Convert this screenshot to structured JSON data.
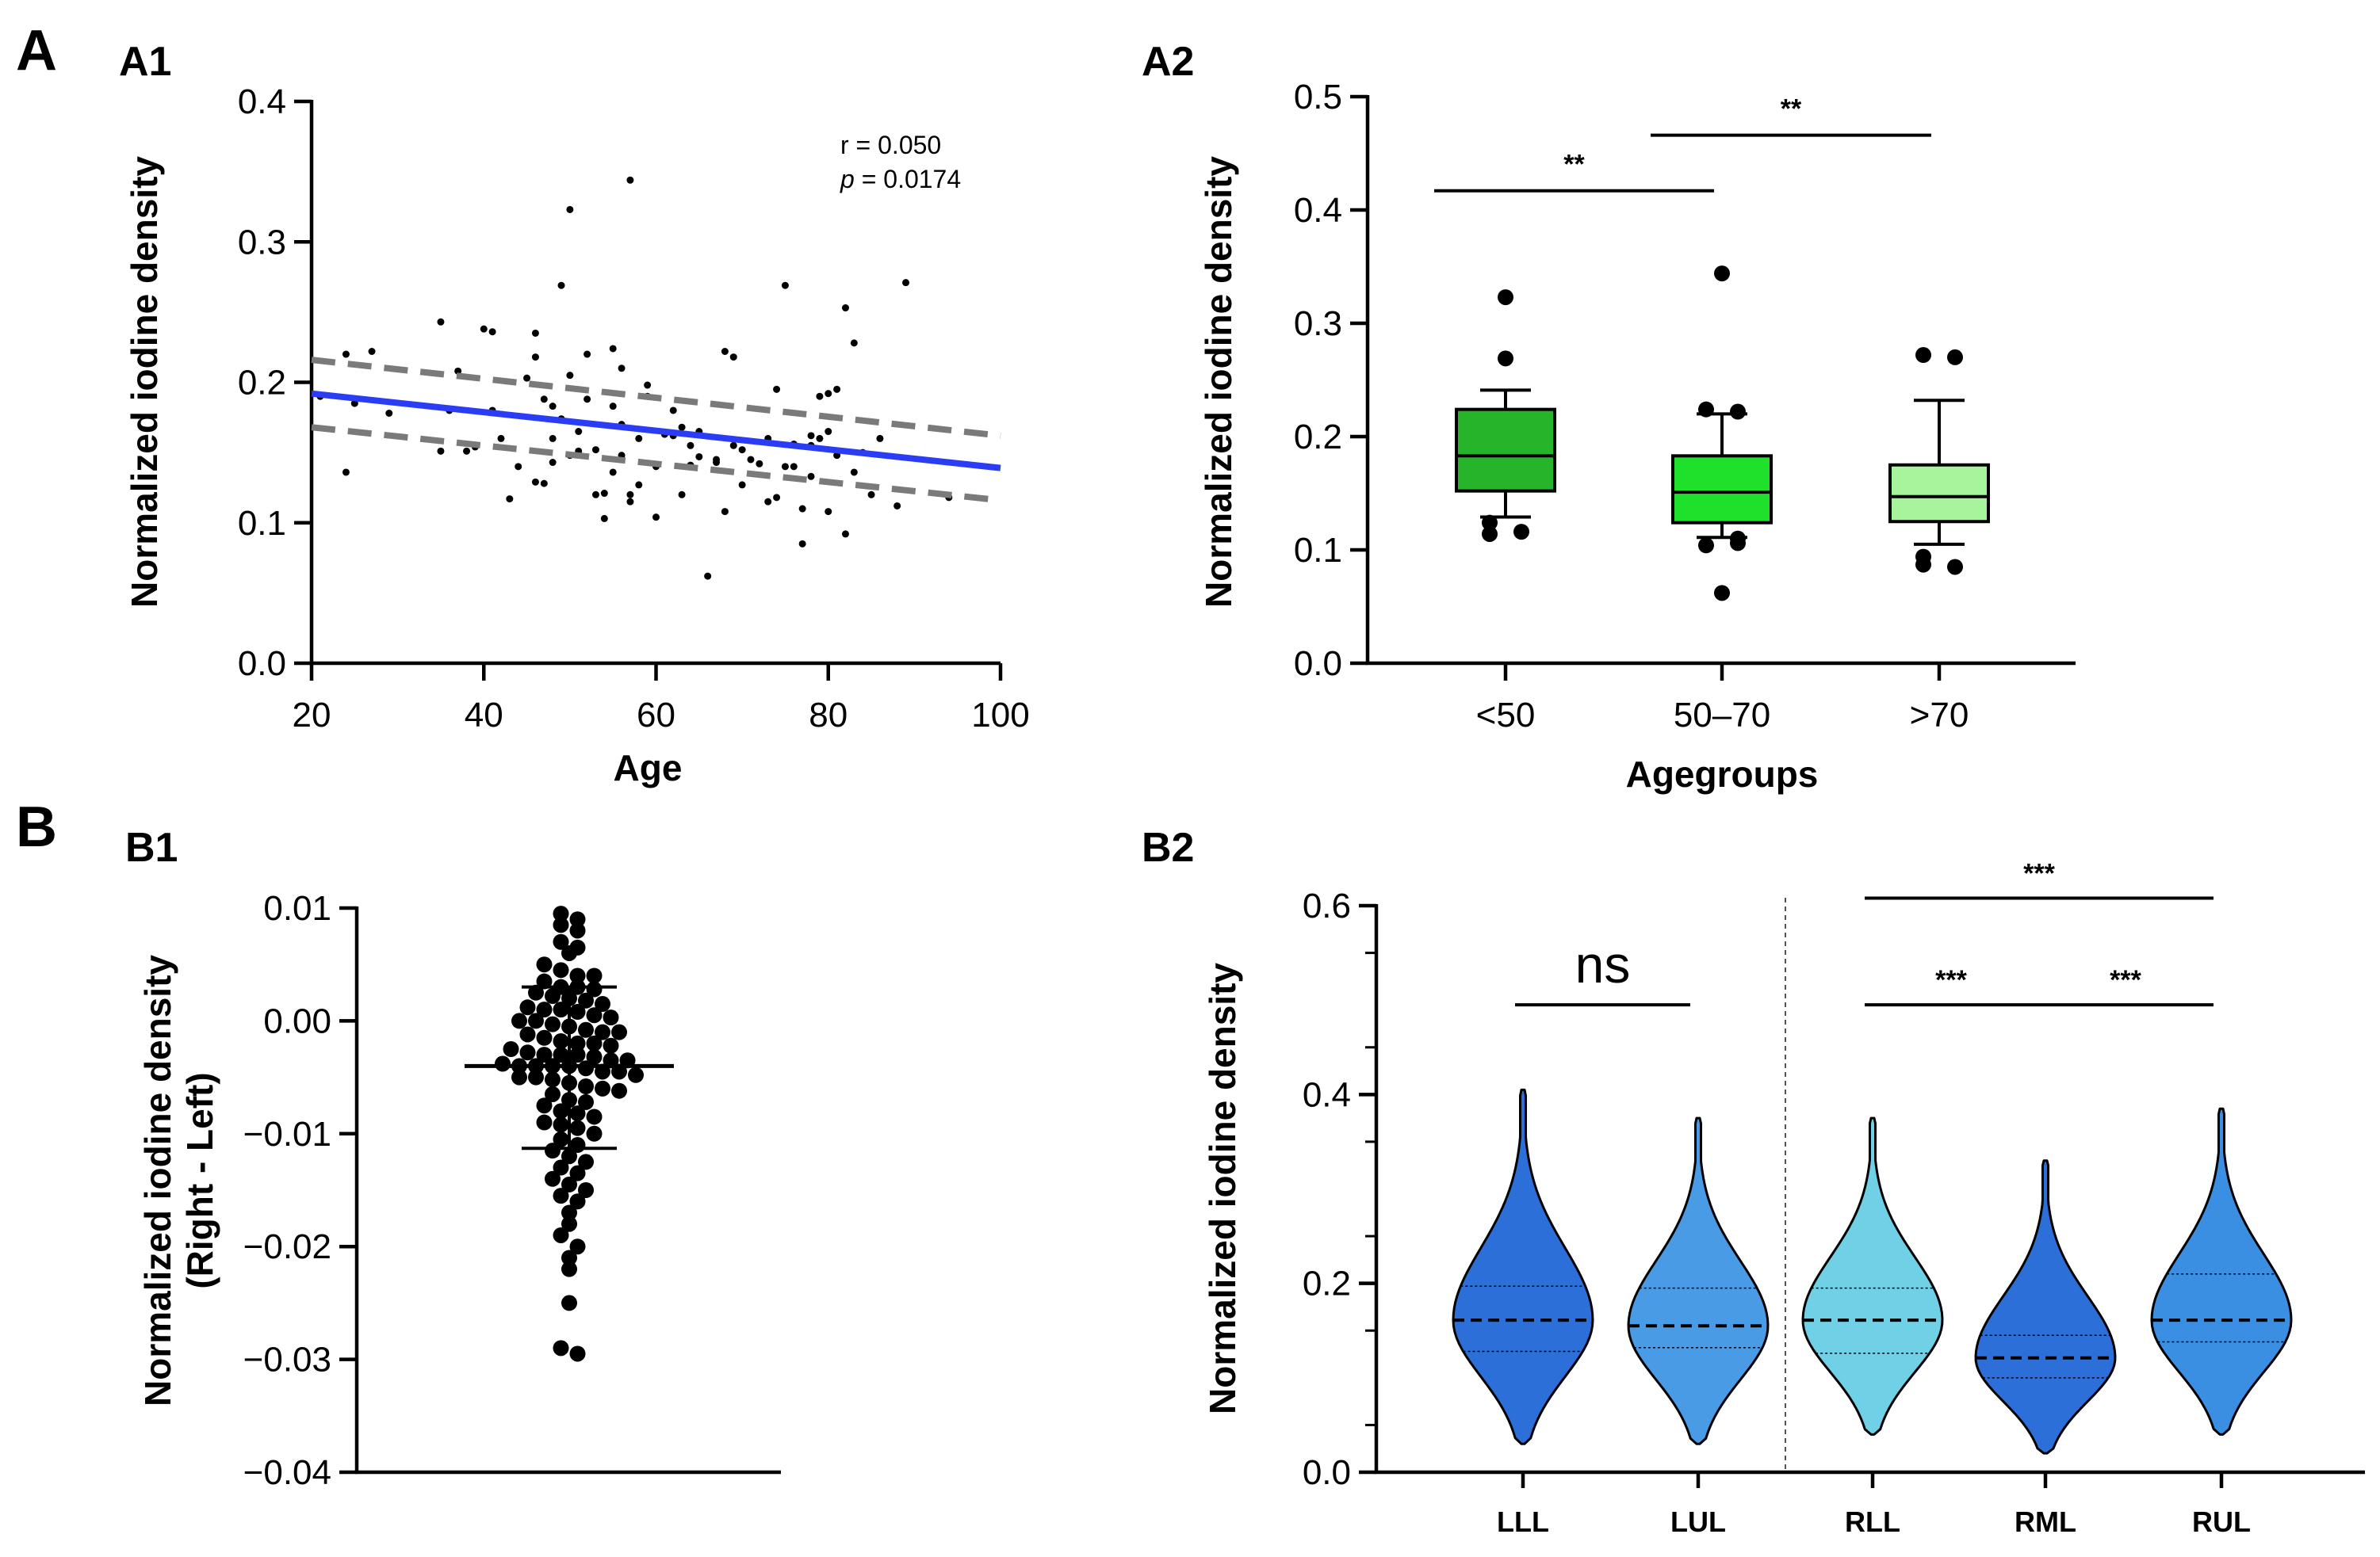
{
  "figure": {
    "panel_labels": [
      "A",
      "A1",
      "A2",
      "B",
      "B1",
      "B2"
    ]
  },
  "chart_data": [
    {
      "panel": "A1",
      "type": "scatter",
      "xlabel": "Age",
      "ylabel": "Normalized iodine density",
      "xlim": [
        20,
        100
      ],
      "ylim": [
        0,
        0.4
      ],
      "xticks": [
        "20",
        "40",
        "60",
        "80",
        "100"
      ],
      "yticks": [
        "0.0",
        "0.1",
        "0.2",
        "0.3",
        "0.4"
      ],
      "annotation_r": "r = 0.050",
      "annotation_p_symbol": "p",
      "annotation_p_value": " = 0.0174",
      "points": [
        [
          21,
          0.19
        ],
        [
          24,
          0.22
        ],
        [
          24,
          0.136
        ],
        [
          25,
          0.185
        ],
        [
          27,
          0.222
        ],
        [
          29,
          0.178
        ],
        [
          35,
          0.243
        ],
        [
          35,
          0.151
        ],
        [
          36,
          0.18
        ],
        [
          37,
          0.208
        ],
        [
          38,
          0.151
        ],
        [
          39,
          0.154
        ],
        [
          40,
          0.238
        ],
        [
          41,
          0.236
        ],
        [
          41,
          0.18
        ],
        [
          42,
          0.16
        ],
        [
          43,
          0.117
        ],
        [
          44,
          0.14
        ],
        [
          45,
          0.203
        ],
        [
          46,
          0.235
        ],
        [
          46,
          0.218
        ],
        [
          46,
          0.129
        ],
        [
          47,
          0.128
        ],
        [
          47,
          0.188
        ],
        [
          48,
          0.183
        ],
        [
          48,
          0.143
        ],
        [
          48,
          0.16
        ],
        [
          49,
          0.269
        ],
        [
          49,
          0.174
        ],
        [
          50,
          0.323
        ],
        [
          50,
          0.148
        ],
        [
          50,
          0.205
        ],
        [
          51,
          0.165
        ],
        [
          51,
          0.151
        ],
        [
          52,
          0.22
        ],
        [
          52,
          0.188
        ],
        [
          53,
          0.12
        ],
        [
          53,
          0.152
        ],
        [
          54,
          0.121
        ],
        [
          54,
          0.103
        ],
        [
          55,
          0.183
        ],
        [
          55,
          0.224
        ],
        [
          55,
          0.136
        ],
        [
          56,
          0.21
        ],
        [
          56,
          0.17
        ],
        [
          56,
          0.148
        ],
        [
          57,
          0.115
        ],
        [
          57,
          0.12
        ],
        [
          57,
          0.344
        ],
        [
          58,
          0.16
        ],
        [
          58,
          0.127
        ],
        [
          59,
          0.19
        ],
        [
          59,
          0.198
        ],
        [
          60,
          0.104
        ],
        [
          60,
          0.14
        ],
        [
          61,
          0.163
        ],
        [
          62,
          0.18
        ],
        [
          62,
          0.162
        ],
        [
          63,
          0.168
        ],
        [
          63,
          0.12
        ],
        [
          64,
          0.141
        ],
        [
          64,
          0.155
        ],
        [
          65,
          0.165
        ],
        [
          65,
          0.147
        ],
        [
          66,
          0.062
        ],
        [
          67,
          0.145
        ],
        [
          67,
          0.143
        ],
        [
          68,
          0.108
        ],
        [
          68,
          0.222
        ],
        [
          69,
          0.218
        ],
        [
          69,
          0.155
        ],
        [
          70,
          0.152
        ],
        [
          70,
          0.127
        ],
        [
          71,
          0.145
        ],
        [
          72,
          0.142
        ],
        [
          73,
          0.16
        ],
        [
          73,
          0.115
        ],
        [
          74,
          0.195
        ],
        [
          74,
          0.118
        ],
        [
          75,
          0.14
        ],
        [
          75,
          0.269
        ],
        [
          76,
          0.14
        ],
        [
          76,
          0.156
        ],
        [
          77,
          0.085
        ],
        [
          77,
          0.11
        ],
        [
          78,
          0.133
        ],
        [
          78,
          0.155
        ],
        [
          78,
          0.162
        ],
        [
          79,
          0.16
        ],
        [
          79,
          0.19
        ],
        [
          80,
          0.165
        ],
        [
          80,
          0.192
        ],
        [
          80,
          0.108
        ],
        [
          81,
          0.195
        ],
        [
          81,
          0.148
        ],
        [
          82,
          0.253
        ],
        [
          82,
          0.092
        ],
        [
          83,
          0.228
        ],
        [
          83,
          0.136
        ],
        [
          84,
          0.15
        ],
        [
          85,
          0.12
        ],
        [
          86,
          0.16
        ],
        [
          88,
          0.112
        ],
        [
          89,
          0.271
        ],
        [
          94,
          0.118
        ]
      ],
      "fit": {
        "x": [
          20,
          100
        ],
        "y": [
          0.192,
          0.139
        ]
      },
      "ci_upper": {
        "x": [
          20,
          100
        ],
        "y": [
          0.216,
          0.162
        ]
      },
      "ci_lower": {
        "x": [
          20,
          100
        ],
        "y": [
          0.168,
          0.116
        ]
      },
      "colors": {
        "fit": "#2b3cf5",
        "ci": "#7a7a7a",
        "points": "#000000"
      }
    },
    {
      "panel": "A2",
      "type": "box",
      "xlabel": "Agegroups",
      "ylabel": "Normalized iodine density",
      "ylim": [
        0,
        0.5
      ],
      "yticks": [
        "0.0",
        "0.1",
        "0.2",
        "0.3",
        "0.4",
        "0.5"
      ],
      "categories": [
        "<50",
        "50–70",
        ">70"
      ],
      "boxes": [
        {
          "q1": 0.152,
          "median": 0.183,
          "q3": 0.224,
          "whisker_low": 0.129,
          "whisker_high": 0.241,
          "outliers": [
            0.323,
            0.269,
            0.124,
            0.116,
            0.114
          ],
          "color": "#26b52a"
        },
        {
          "q1": 0.124,
          "median": 0.151,
          "q3": 0.183,
          "whisker_low": 0.111,
          "whisker_high": 0.22,
          "outliers": [
            0.344,
            0.222,
            0.224,
            0.11,
            0.104,
            0.106,
            0.062
          ],
          "color": "#1fe02b"
        },
        {
          "q1": 0.125,
          "median": 0.147,
          "q3": 0.175,
          "whisker_low": 0.105,
          "whisker_high": 0.232,
          "outliers": [
            0.272,
            0.27,
            0.094,
            0.085,
            0.087
          ],
          "color": "#a6f59c"
        }
      ],
      "significance": [
        {
          "from": 0,
          "to": 1,
          "label": "**",
          "y": 0.417
        },
        {
          "from": 1,
          "to": 2,
          "label": "**",
          "y": 0.466
        }
      ]
    },
    {
      "panel": "B1",
      "type": "scatter",
      "ylabel_line1": "Normalized iodine density",
      "ylabel_line2": "(Right - Left)",
      "ylim": [
        -0.04,
        0.01
      ],
      "yticks": [
        "−0.04",
        "−0.03",
        "−0.02",
        "−0.01",
        "0.00",
        "0.01"
      ],
      "mean": -0.004,
      "sd_upper": 0.003,
      "sd_lower": -0.0113,
      "values": [
        0.0095,
        0.009,
        0.0085,
        0.008,
        0.007,
        0.0065,
        0.006,
        0.005,
        0.0045,
        0.004,
        0.004,
        0.0035,
        0.003,
        0.003,
        0.0028,
        0.0025,
        0.0022,
        0.002,
        0.0018,
        0.0015,
        0.0012,
        0.001,
        0.001,
        0.0008,
        0.0005,
        0.0003,
        0.0,
        0.0,
        -0.0003,
        -0.0005,
        -0.0008,
        -0.001,
        -0.001,
        -0.0012,
        -0.0015,
        -0.0018,
        -0.002,
        -0.002,
        -0.0022,
        -0.0025,
        -0.0028,
        -0.003,
        -0.003,
        -0.003,
        -0.0032,
        -0.0035,
        -0.0035,
        -0.0038,
        -0.004,
        -0.004,
        -0.004,
        -0.004,
        -0.0042,
        -0.0045,
        -0.0045,
        -0.0048,
        -0.005,
        -0.005,
        -0.0052,
        -0.0055,
        -0.0058,
        -0.006,
        -0.0062,
        -0.0065,
        -0.007,
        -0.0072,
        -0.0075,
        -0.008,
        -0.0082,
        -0.0085,
        -0.009,
        -0.0092,
        -0.0095,
        -0.01,
        -0.0105,
        -0.011,
        -0.0115,
        -0.012,
        -0.0125,
        -0.013,
        -0.0135,
        -0.014,
        -0.0145,
        -0.015,
        -0.0155,
        -0.016,
        -0.017,
        -0.018,
        -0.019,
        -0.02,
        -0.021,
        -0.022,
        -0.025,
        -0.029,
        -0.0295
      ]
    },
    {
      "panel": "B2",
      "type": "violin",
      "ylabel": "Normalized iodine density",
      "ylim": [
        0,
        0.6
      ],
      "yticks": [
        "0.0",
        "0.2",
        "0.4",
        "0.6"
      ],
      "categories": [
        "LLL",
        "LUL",
        "RLL",
        "RML",
        "RUL"
      ],
      "violins": [
        {
          "median": 0.161,
          "q1": 0.128,
          "q3": 0.197,
          "min": 0.03,
          "max": 0.405,
          "color": "#2c6fd8"
        },
        {
          "median": 0.155,
          "q1": 0.132,
          "q3": 0.195,
          "min": 0.03,
          "max": 0.375,
          "color": "#4a9be6"
        },
        {
          "median": 0.161,
          "q1": 0.126,
          "q3": 0.195,
          "min": 0.04,
          "max": 0.375,
          "color": "#70d0e6"
        },
        {
          "median": 0.121,
          "q1": 0.1,
          "q3": 0.145,
          "min": 0.02,
          "max": 0.33,
          "color": "#2c6fd8"
        },
        {
          "median": 0.161,
          "q1": 0.138,
          "q3": 0.21,
          "min": 0.04,
          "max": 0.385,
          "color": "#3a8fe2"
        }
      ],
      "significance": [
        {
          "from": 0,
          "to": 1,
          "label": "ns",
          "y": 0.495
        },
        {
          "from": 2,
          "to": 3,
          "label": "***",
          "y": 0.495
        },
        {
          "from": 3,
          "to": 4,
          "label": "***",
          "y": 0.495
        },
        {
          "from": 2,
          "to": 4,
          "label": "***",
          "y": 0.608
        }
      ]
    }
  ]
}
